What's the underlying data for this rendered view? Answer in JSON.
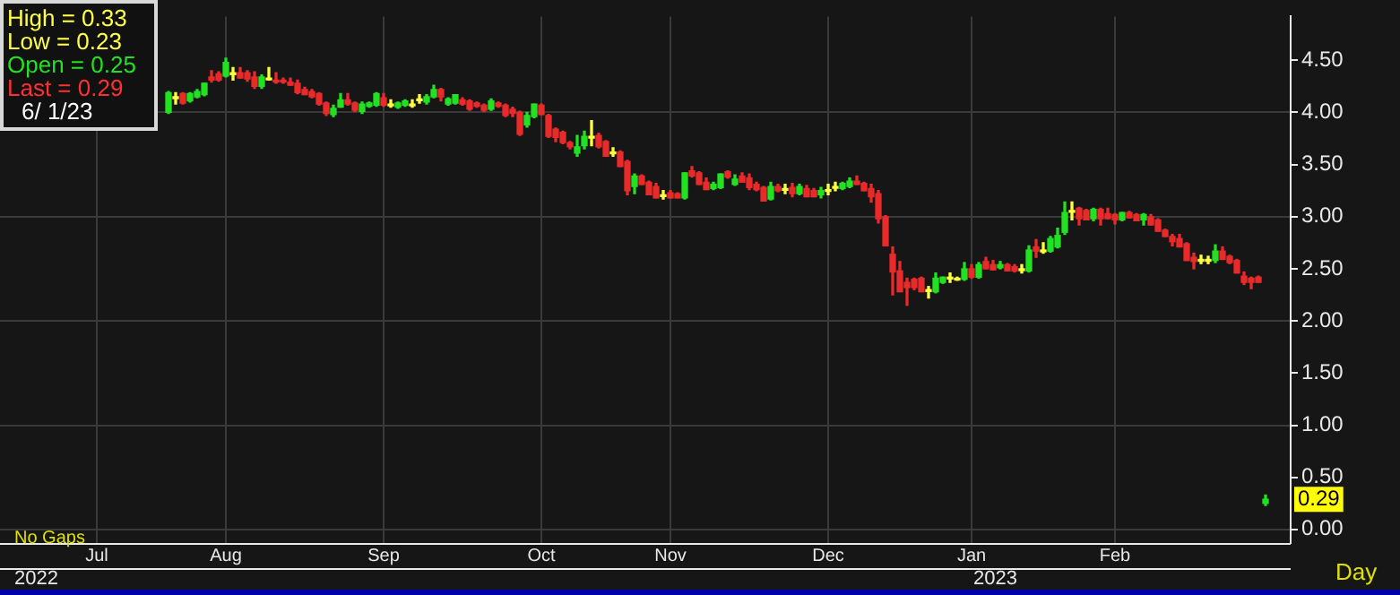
{
  "chart_data": {
    "type": "candlestick",
    "categories": [
      null,
      null,
      null,
      null,
      null,
      null,
      null,
      null,
      null,
      null,
      null,
      null,
      null,
      "Jul",
      null,
      null,
      null,
      null,
      null,
      null,
      null,
      null,
      null,
      null,
      null,
      null,
      null,
      null,
      null,
      null,
      null,
      "Aug",
      null,
      null,
      null,
      null,
      null,
      null,
      null,
      null,
      null,
      null,
      null,
      null,
      null,
      null,
      null,
      null,
      null,
      null,
      null,
      null,
      null,
      "Sep",
      null,
      null,
      null,
      null,
      null,
      null,
      null,
      null,
      null,
      null,
      null,
      null,
      null,
      null,
      null,
      null,
      null,
      null,
      null,
      null,
      null,
      "Oct",
      null,
      null,
      null,
      null,
      null,
      null,
      null,
      null,
      null,
      null,
      null,
      null,
      null,
      null,
      null,
      null,
      null,
      "Nov",
      null,
      null,
      null,
      null,
      null,
      null,
      null,
      null,
      null,
      null,
      null,
      null,
      null,
      null,
      null,
      null,
      null,
      null,
      null,
      null,
      null,
      "Dec",
      null,
      null,
      null,
      null,
      null,
      null,
      null,
      null,
      null,
      null,
      null,
      null,
      null,
      null,
      null,
      null,
      null,
      null,
      null,
      "Jan",
      null,
      null,
      null,
      null,
      null,
      null,
      null,
      null,
      null,
      null,
      null,
      null,
      null,
      null,
      null,
      null,
      null,
      null,
      null,
      "Feb",
      null,
      null,
      null,
      null,
      null,
      null,
      null,
      null,
      null,
      null,
      null,
      null,
      null,
      null,
      null,
      null,
      null,
      null,
      null,
      null,
      null,
      null,
      null,
      null
    ],
    "ohlc": [
      null,
      null,
      null,
      null,
      null,
      null,
      null,
      null,
      null,
      null,
      null,
      null,
      null,
      null,
      null,
      null,
      null,
      null,
      null,
      null,
      null,
      null,
      null,
      [
        4.0,
        4.2,
        3.99,
        4.19
      ],
      [
        4.15,
        4.19,
        4.08,
        4.15
      ],
      [
        4.18,
        4.19,
        4.08,
        4.09
      ],
      [
        4.11,
        4.19,
        4.1,
        4.18
      ],
      [
        4.15,
        4.22,
        4.14,
        4.2
      ],
      [
        4.17,
        4.28,
        4.16,
        4.28
      ],
      [
        4.34,
        4.4,
        4.29,
        4.31
      ],
      [
        4.37,
        4.39,
        4.3,
        4.31
      ],
      [
        4.35,
        4.52,
        4.34,
        4.48
      ],
      [
        4.38,
        4.43,
        4.31,
        4.38
      ],
      [
        4.38,
        4.43,
        4.33,
        4.33
      ],
      [
        4.38,
        4.4,
        4.3,
        4.32
      ],
      [
        4.34,
        4.39,
        4.23,
        4.25
      ],
      [
        4.25,
        4.36,
        4.23,
        4.34
      ],
      [
        4.33,
        4.43,
        4.31,
        4.33
      ],
      [
        4.31,
        4.38,
        4.28,
        4.29
      ],
      [
        4.31,
        4.33,
        4.28,
        4.29
      ],
      [
        4.29,
        4.33,
        4.26,
        4.26
      ],
      [
        4.28,
        4.31,
        4.18,
        4.19
      ],
      [
        4.22,
        4.24,
        4.17,
        4.17
      ],
      [
        4.2,
        4.22,
        4.14,
        4.15
      ],
      [
        4.18,
        4.19,
        4.07,
        4.08
      ],
      [
        4.09,
        4.1,
        3.97,
        3.99
      ],
      [
        3.98,
        4.07,
        3.96,
        4.04
      ],
      [
        4.05,
        4.18,
        4.05,
        4.12
      ],
      [
        4.12,
        4.18,
        4.07,
        4.08
      ],
      [
        4.09,
        4.1,
        4.01,
        4.02
      ],
      [
        4.01,
        4.1,
        3.99,
        4.08
      ],
      [
        4.06,
        4.1,
        4.05,
        4.09
      ],
      [
        4.07,
        4.19,
        4.06,
        4.18
      ],
      [
        4.14,
        4.18,
        4.06,
        4.07
      ],
      [
        4.08,
        4.12,
        4.05,
        4.08
      ],
      [
        4.05,
        4.1,
        4.04,
        4.09
      ],
      [
        4.07,
        4.12,
        4.06,
        4.11
      ],
      [
        4.08,
        4.12,
        4.05,
        4.08
      ],
      [
        4.13,
        4.17,
        4.09,
        4.13
      ],
      [
        4.1,
        4.17,
        4.08,
        4.15
      ],
      [
        4.15,
        4.26,
        4.14,
        4.22
      ],
      [
        4.22,
        4.23,
        4.11,
        4.15
      ],
      [
        4.08,
        4.14,
        4.07,
        4.13
      ],
      [
        4.09,
        4.17,
        4.08,
        4.17
      ],
      [
        4.12,
        4.14,
        4.07,
        4.08
      ],
      [
        4.11,
        4.12,
        4.02,
        4.03
      ],
      [
        4.09,
        4.1,
        4.05,
        4.06
      ],
      [
        4.07,
        4.08,
        4.01,
        4.02
      ],
      [
        4.03,
        4.13,
        4.02,
        4.11
      ],
      [
        4.09,
        4.1,
        4.05,
        4.06
      ],
      [
        4.07,
        4.08,
        3.96,
        3.97
      ],
      [
        4.03,
        4.05,
        3.96,
        3.99
      ],
      [
        4.0,
        4.01,
        3.78,
        3.79
      ],
      [
        3.88,
        4.0,
        3.86,
        3.97
      ],
      [
        3.96,
        4.08,
        3.95,
        4.08
      ],
      [
        4.07,
        4.08,
        3.98,
        3.98
      ],
      [
        3.97,
        3.98,
        3.76,
        3.77
      ],
      [
        3.84,
        3.85,
        3.72,
        3.76
      ],
      [
        3.81,
        3.82,
        3.7,
        3.71
      ],
      [
        3.71,
        3.72,
        3.65,
        3.67
      ],
      [
        3.61,
        3.78,
        3.58,
        3.67
      ],
      [
        3.68,
        3.82,
        3.65,
        3.77
      ],
      [
        3.77,
        3.92,
        3.68,
        3.77
      ],
      [
        3.78,
        3.8,
        3.66,
        3.67
      ],
      [
        3.72,
        3.73,
        3.58,
        3.58
      ],
      [
        3.62,
        3.66,
        3.58,
        3.62
      ],
      [
        3.62,
        3.63,
        3.48,
        3.48
      ],
      [
        3.53,
        3.54,
        3.21,
        3.25
      ],
      [
        3.29,
        3.41,
        3.22,
        3.39
      ],
      [
        3.39,
        3.4,
        3.31,
        3.31
      ],
      [
        3.33,
        3.34,
        3.21,
        3.21
      ],
      [
        3.29,
        3.32,
        3.18,
        3.18
      ],
      [
        3.21,
        3.25,
        3.17,
        3.21
      ],
      [
        3.23,
        3.25,
        3.18,
        3.18
      ],
      [
        3.22,
        3.23,
        3.18,
        3.18
      ],
      [
        3.18,
        3.42,
        3.17,
        3.42
      ],
      [
        3.44,
        3.48,
        3.38,
        3.39
      ],
      [
        3.42,
        3.43,
        3.31,
        3.31
      ],
      [
        3.33,
        3.37,
        3.26,
        3.26
      ],
      [
        3.27,
        3.33,
        3.26,
        3.31
      ],
      [
        3.28,
        3.41,
        3.27,
        3.41
      ],
      [
        3.43,
        3.44,
        3.37,
        3.38
      ],
      [
        3.31,
        3.4,
        3.3,
        3.36
      ],
      [
        3.39,
        3.42,
        3.33,
        3.33
      ],
      [
        3.37,
        3.41,
        3.26,
        3.28
      ],
      [
        3.31,
        3.33,
        3.25,
        3.26
      ],
      [
        3.28,
        3.29,
        3.15,
        3.15
      ],
      [
        3.17,
        3.33,
        3.16,
        3.29
      ],
      [
        3.29,
        3.31,
        3.24,
        3.25
      ],
      [
        3.27,
        3.31,
        3.22,
        3.27
      ],
      [
        3.28,
        3.32,
        3.19,
        3.22
      ],
      [
        3.22,
        3.31,
        3.21,
        3.29
      ],
      [
        3.27,
        3.3,
        3.19,
        3.19
      ],
      [
        3.25,
        3.27,
        3.19,
        3.19
      ],
      [
        3.21,
        3.28,
        3.18,
        3.25
      ],
      [
        3.26,
        3.31,
        3.21,
        3.26
      ],
      [
        3.29,
        3.33,
        3.25,
        3.29
      ],
      [
        3.27,
        3.33,
        3.26,
        3.32
      ],
      [
        3.29,
        3.37,
        3.28,
        3.34
      ],
      [
        3.34,
        3.39,
        3.31,
        3.31
      ],
      [
        3.32,
        3.33,
        3.25,
        3.25
      ],
      [
        3.27,
        3.31,
        3.14,
        3.19
      ],
      [
        3.22,
        3.25,
        2.94,
        2.98
      ],
      [
        3.0,
        3.01,
        2.72,
        2.72
      ],
      [
        2.64,
        2.71,
        2.25,
        2.47
      ],
      [
        2.48,
        2.57,
        2.28,
        2.28
      ],
      [
        2.37,
        2.41,
        2.15,
        2.32
      ],
      [
        2.4,
        2.41,
        2.3,
        2.32
      ],
      [
        2.41,
        2.42,
        2.28,
        2.28
      ],
      [
        2.3,
        2.33,
        2.22,
        2.3
      ],
      [
        2.28,
        2.46,
        2.27,
        2.41
      ],
      [
        2.37,
        2.42,
        2.36,
        2.42
      ],
      [
        2.42,
        2.46,
        2.37,
        2.42
      ],
      [
        2.41,
        2.42,
        2.39,
        2.41
      ],
      [
        2.4,
        2.56,
        2.39,
        2.5
      ],
      [
        2.5,
        2.54,
        2.41,
        2.42
      ],
      [
        2.42,
        2.56,
        2.41,
        2.54
      ],
      [
        2.57,
        2.61,
        2.5,
        2.5
      ],
      [
        2.54,
        2.58,
        2.49,
        2.49
      ],
      [
        2.51,
        2.57,
        2.5,
        2.54
      ],
      [
        2.54,
        2.55,
        2.48,
        2.48
      ],
      [
        2.52,
        2.54,
        2.47,
        2.48
      ],
      [
        2.5,
        2.54,
        2.46,
        2.5
      ],
      [
        2.48,
        2.72,
        2.47,
        2.68
      ],
      [
        2.71,
        2.78,
        2.61,
        2.67
      ],
      [
        2.68,
        2.75,
        2.65,
        2.68
      ],
      [
        2.67,
        2.81,
        2.66,
        2.79
      ],
      [
        2.71,
        2.89,
        2.7,
        2.82
      ],
      [
        2.85,
        3.14,
        2.83,
        3.04
      ],
      [
        3.06,
        3.14,
        2.97,
        3.06
      ],
      [
        3.08,
        3.09,
        2.92,
        2.98
      ],
      [
        3.06,
        3.07,
        2.97,
        2.97
      ],
      [
        2.98,
        3.08,
        2.96,
        3.07
      ],
      [
        3.07,
        3.08,
        2.92,
        2.98
      ],
      [
        3.03,
        3.08,
        2.98,
        2.98
      ],
      [
        3.02,
        3.03,
        2.93,
        2.97
      ],
      [
        2.97,
        3.04,
        2.96,
        3.04
      ],
      [
        3.04,
        3.05,
        2.99,
        2.99
      ],
      [
        3.02,
        3.03,
        2.96,
        2.96
      ],
      [
        2.97,
        3.03,
        2.92,
        3.02
      ],
      [
        3.0,
        3.02,
        2.92,
        2.92
      ],
      [
        2.97,
        2.98,
        2.86,
        2.86
      ],
      [
        2.87,
        2.88,
        2.81,
        2.81
      ],
      [
        2.81,
        2.83,
        2.72,
        2.76
      ],
      [
        2.79,
        2.83,
        2.71,
        2.71
      ],
      [
        2.74,
        2.75,
        2.58,
        2.58
      ],
      [
        2.61,
        2.65,
        2.5,
        2.57
      ],
      [
        2.59,
        2.63,
        2.55,
        2.59
      ],
      [
        2.59,
        2.62,
        2.55,
        2.59
      ],
      [
        2.58,
        2.73,
        2.56,
        2.67
      ],
      [
        2.67,
        2.71,
        2.59,
        2.59
      ],
      [
        2.62,
        2.63,
        2.55,
        2.56
      ],
      [
        2.58,
        2.59,
        2.46,
        2.46
      ],
      [
        2.43,
        2.47,
        2.35,
        2.37
      ],
      [
        2.41,
        2.42,
        2.31,
        2.37
      ],
      [
        2.42,
        2.43,
        2.37,
        2.37
      ],
      [
        0.25,
        0.33,
        0.23,
        0.29
      ],
      null,
      null,
      null
    ],
    "ylim": [
      -0.13,
      4.92
    ],
    "yticks": [
      {
        "value": 0,
        "label": "0.00"
      },
      {
        "value": 0.5,
        "label": "0.50"
      },
      {
        "value": 1,
        "label": "1.00"
      },
      {
        "value": 1.5,
        "label": "1.50"
      },
      {
        "value": 2,
        "label": "2.00"
      },
      {
        "value": 2.5,
        "label": "2.50"
      },
      {
        "value": 3,
        "label": "3.00"
      },
      {
        "value": 3.5,
        "label": "3.50"
      },
      {
        "value": 4,
        "label": "4.00"
      },
      {
        "value": 4.5,
        "label": "4.50"
      }
    ],
    "grid": true,
    "annotations": [
      "High = 0.33",
      "Low = 0.23",
      "Open = 0.25",
      "Last = 0.29",
      "6/ 1/23",
      "No Gaps",
      "Day",
      "2022",
      "2023",
      {
        "text": "0.29",
        "y": 0.29
      }
    ]
  }
}
